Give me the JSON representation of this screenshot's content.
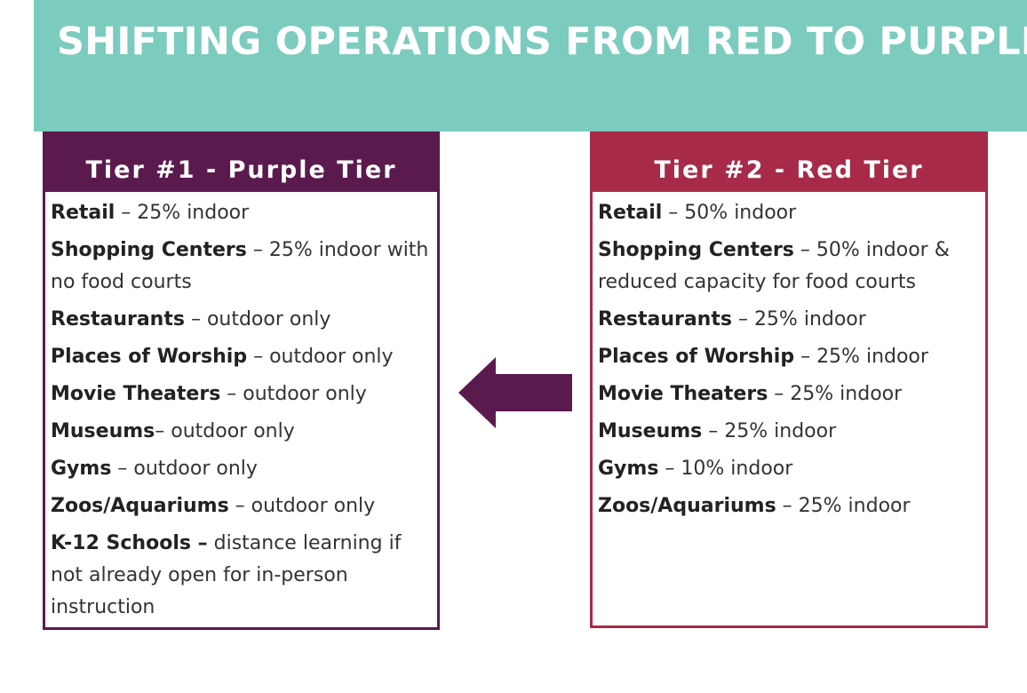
{
  "title": "SHIFTING OPERATIONS FROM RED TO PURPLE",
  "colors": {
    "banner": "#7ccbbf",
    "purple": "#5b1a4e",
    "red": "#a72b48"
  },
  "tiers": [
    {
      "heading": "Tier #1 - Purple Tier",
      "items": [
        {
          "name": "Retail",
          "desc": " – 25% indoor"
        },
        {
          "name": "Shopping Centers",
          "desc": " – 25% indoor with no food courts"
        },
        {
          "name": "Restaurants",
          "desc": " – outdoor only"
        },
        {
          "name": "Places of Worship",
          "desc": " – outdoor only"
        },
        {
          "name": "Movie Theaters",
          "desc": " – outdoor only"
        },
        {
          "name": "Museums",
          "desc": "– outdoor only"
        },
        {
          "name": "Gyms",
          "desc": " – outdoor only"
        },
        {
          "name": "Zoos/Aquariums",
          "desc": " – outdoor only"
        },
        {
          "name": "K-12 Schools –",
          "desc": " distance learning if not already open for in-person instruction"
        }
      ]
    },
    {
      "heading": "Tier #2 - Red Tier",
      "items": [
        {
          "name": "Retail",
          "desc": " – 50% indoor"
        },
        {
          "name": "Shopping Centers",
          "desc": " – 50% indoor & reduced capacity for food courts"
        },
        {
          "name": "Restaurants",
          "desc": " – 25% indoor"
        },
        {
          "name": "Places of Worship",
          "desc": " – 25% indoor"
        },
        {
          "name": "Movie Theaters",
          "desc": " – 25% indoor"
        },
        {
          "name": "Museums",
          "desc": " – 25% indoor"
        },
        {
          "name": "Gyms",
          "desc": " – 10% indoor"
        },
        {
          "name": "Zoos/Aquariums",
          "desc": " – 25% indoor"
        }
      ]
    }
  ],
  "arrow_icon": "left-arrow-icon"
}
